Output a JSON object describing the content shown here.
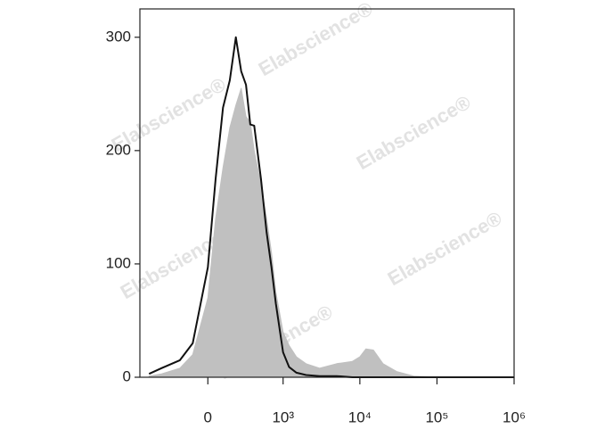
{
  "chart_data": {
    "type": "histogram-overlay",
    "xscale": "biex",
    "x": [
      -600,
      -400,
      -200,
      -100,
      0,
      50,
      100,
      150,
      200,
      250,
      300,
      350,
      400,
      500,
      600,
      700,
      800,
      1000,
      1200,
      1500,
      2000,
      3000,
      5000,
      8000,
      10000,
      12000,
      15000,
      20000,
      30000,
      50000,
      100000,
      1000000
    ],
    "series": [
      {
        "color": "#c0c0c0",
        "fill": true,
        "values": [
          1,
          3,
          8,
          20,
          70,
          140,
          185,
          220,
          240,
          255,
          230,
          225,
          200,
          170,
          140,
          110,
          75,
          40,
          28,
          18,
          12,
          8,
          12,
          14,
          18,
          25,
          24,
          12,
          5,
          1,
          0,
          0
        ]
      },
      {
        "color": "#111111",
        "fill": false,
        "values": [
          3,
          8,
          15,
          30,
          97,
          175,
          238,
          262,
          300,
          270,
          258,
          223,
          222,
          175,
          128,
          97,
          65,
          22,
          9,
          4,
          2,
          1,
          1,
          0,
          0,
          0,
          0,
          0,
          0,
          0,
          0,
          0
        ]
      }
    ],
    "xlim": [
      -800,
      1000000
    ],
    "xticks": [
      0,
      {
        "value": 1000,
        "label": "10³"
      },
      {
        "value": 10000,
        "label": "10⁴"
      },
      {
        "value": 100000,
        "label": "10⁵"
      },
      {
        "value": 1000000,
        "label": "10⁶"
      }
    ],
    "ylim": [
      0,
      325
    ],
    "yticks": [
      0,
      100,
      200,
      300
    ],
    "watermark": "Elabscience®"
  }
}
